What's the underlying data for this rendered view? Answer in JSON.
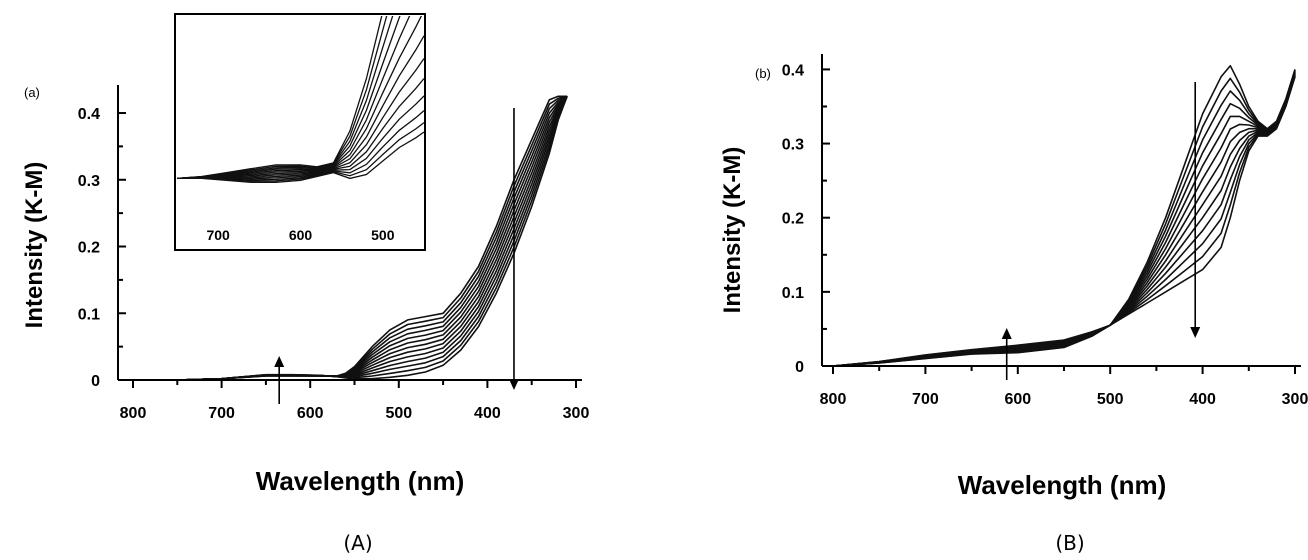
{
  "chart_data": [
    {
      "type": "line",
      "panel_label": "(a)",
      "caption": "(A)",
      "xlabel": "Wavelength (nm)",
      "ylabel": "Intensity (K-M)",
      "xlim": [
        800,
        300
      ],
      "ylim": [
        0,
        0.43
      ],
      "x_ticks": [
        "800",
        "700",
        "600",
        "500",
        "400",
        "300"
      ],
      "y_ticks": [
        "0",
        "0.1",
        "0.2",
        "0.3",
        "0.4"
      ],
      "x_reversed": true,
      "arrows": [
        {
          "at_x": 635,
          "direction": "up"
        },
        {
          "at_x": 370,
          "direction": "down"
        }
      ],
      "series_count": 13,
      "series_x": [
        800,
        750,
        700,
        650,
        620,
        590,
        570,
        560,
        550,
        530,
        510,
        490,
        470,
        450,
        430,
        410,
        390,
        370,
        350,
        330,
        320,
        310
      ],
      "series_first": [
        0,
        0,
        0.002,
        0.006,
        0.006,
        0.006,
        0.006,
        0.01,
        0.02,
        0.05,
        0.075,
        0.09,
        0.095,
        0.1,
        0.13,
        0.17,
        0.23,
        0.3,
        0.36,
        0.42,
        0.425,
        0.425
      ],
      "series_last": [
        0,
        0,
        0.002,
        0.008,
        0.008,
        0.007,
        0.005,
        0.003,
        0.002,
        0.002,
        0.004,
        0.007,
        0.012,
        0.022,
        0.045,
        0.08,
        0.13,
        0.19,
        0.26,
        0.34,
        0.39,
        0.425
      ],
      "inset": {
        "x_ticks": [
          "700",
          "600",
          "500"
        ],
        "xlim": [
          750,
          450
        ],
        "series_x": [
          750,
          720,
          690,
          660,
          630,
          600,
          580,
          560,
          540,
          520,
          500,
          480,
          460,
          450
        ],
        "series_first": [
          0.36,
          0.37,
          0.39,
          0.41,
          0.43,
          0.43,
          0.42,
          0.44,
          0.52,
          0.66,
          0.82,
          0.95,
          1.05,
          1.1
        ],
        "series_last": [
          0.36,
          0.36,
          0.35,
          0.34,
          0.34,
          0.35,
          0.37,
          0.39,
          0.36,
          0.38,
          0.45,
          0.52,
          0.57,
          0.6
        ]
      }
    },
    {
      "type": "line",
      "panel_label": "(b)",
      "caption": "(B)",
      "xlabel": "Wavelength (nm)",
      "ylabel": "Intensity (K-M)",
      "xlim": [
        800,
        300
      ],
      "ylim": [
        0,
        0.41
      ],
      "x_ticks": [
        "800",
        "700",
        "600",
        "500",
        "400",
        "300"
      ],
      "y_ticks": [
        "0",
        "0.1",
        "0.2",
        "0.3",
        "0.4"
      ],
      "x_reversed": true,
      "arrows": [
        {
          "at_x": 612,
          "direction": "up"
        },
        {
          "at_x": 408,
          "direction": "down"
        }
      ],
      "series_count": 13,
      "series_x": [
        800,
        750,
        700,
        650,
        600,
        550,
        520,
        500,
        480,
        460,
        440,
        420,
        400,
        380,
        370,
        360,
        350,
        340,
        330,
        320,
        310,
        300
      ],
      "series_first": [
        0,
        0.004,
        0.01,
        0.016,
        0.018,
        0.025,
        0.04,
        0.055,
        0.09,
        0.14,
        0.2,
        0.27,
        0.34,
        0.39,
        0.405,
        0.38,
        0.35,
        0.33,
        0.32,
        0.33,
        0.36,
        0.4
      ],
      "series_last": [
        0,
        0.006,
        0.015,
        0.022,
        0.028,
        0.035,
        0.046,
        0.055,
        0.07,
        0.085,
        0.1,
        0.115,
        0.13,
        0.16,
        0.2,
        0.25,
        0.29,
        0.31,
        0.31,
        0.32,
        0.35,
        0.39
      ]
    }
  ]
}
